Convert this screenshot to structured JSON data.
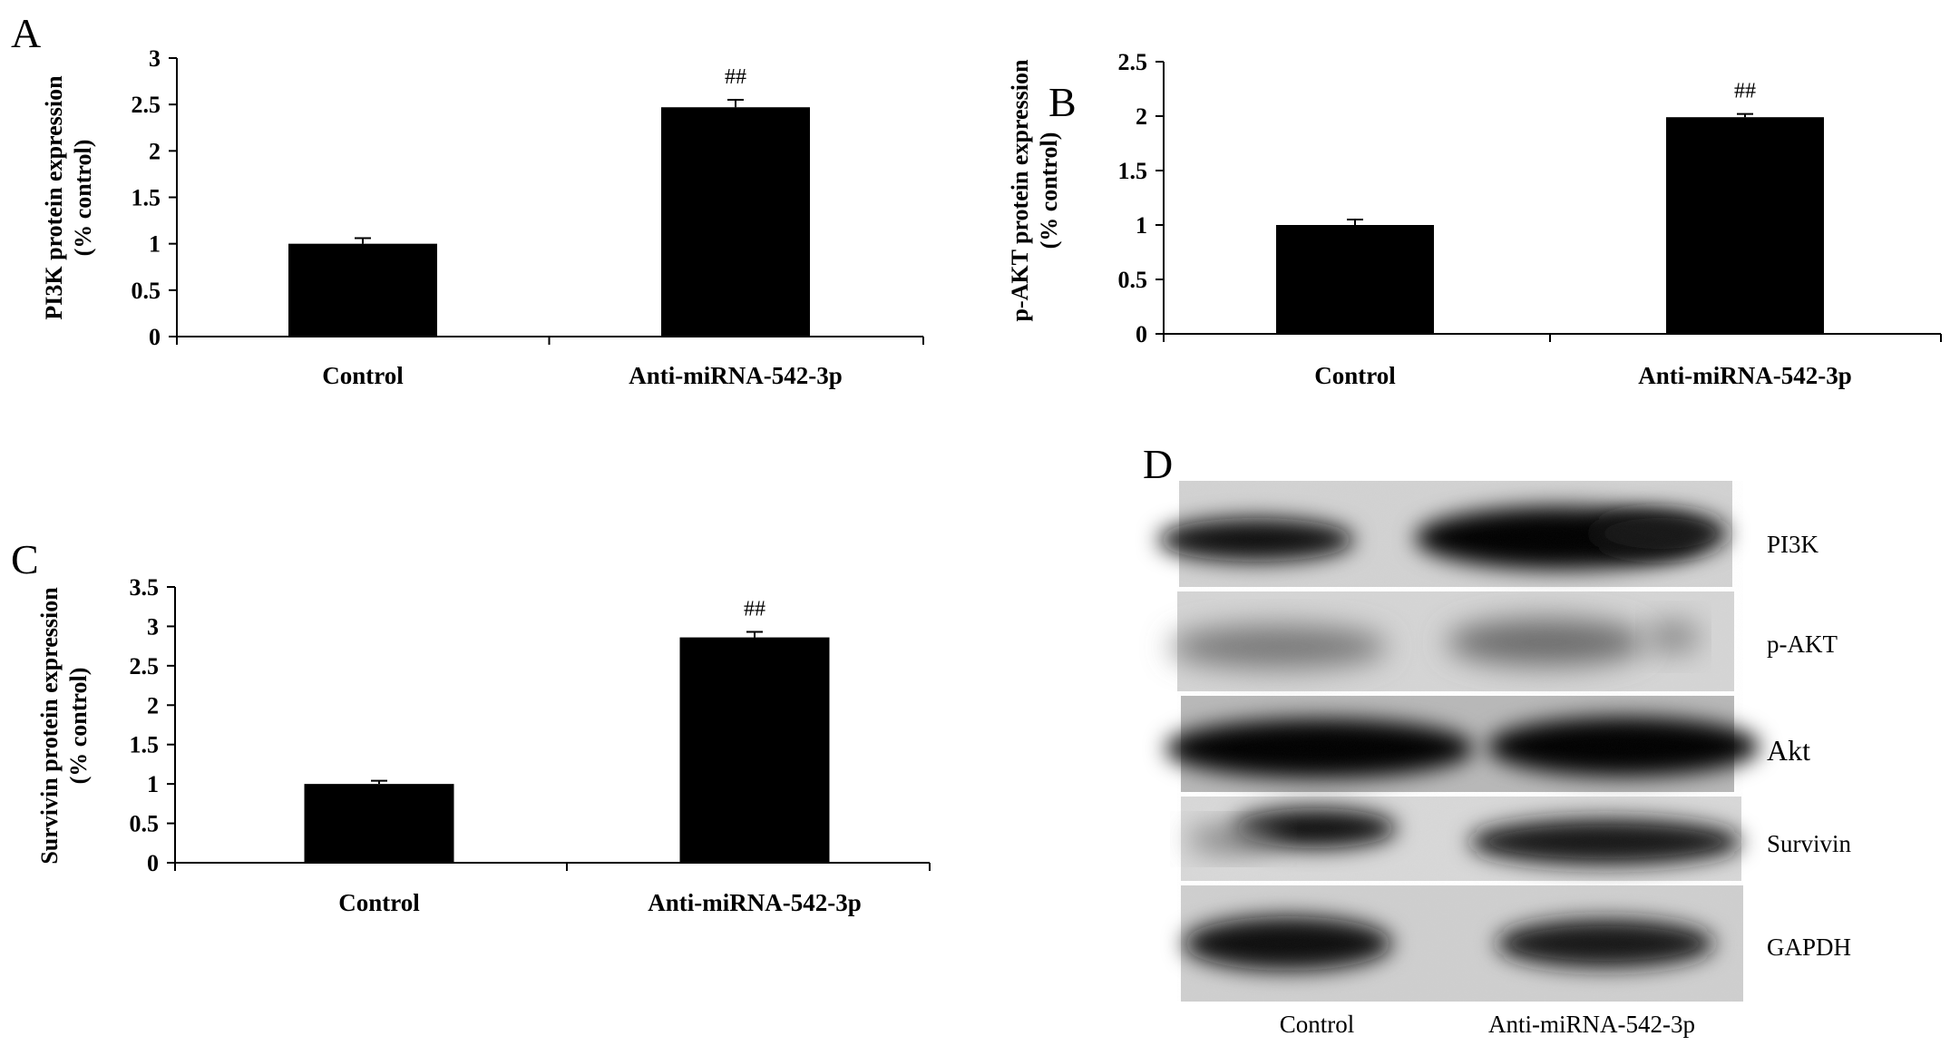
{
  "figure": {
    "panel_letters": [
      "A",
      "B",
      "C",
      "D"
    ]
  },
  "chart_data": [
    {
      "panel": "A",
      "type": "bar",
      "categories": [
        "Control",
        "Anti-miRNA-542-3p"
      ],
      "values": [
        1.0,
        2.47
      ],
      "errors": [
        0.06,
        0.08
      ],
      "annotations": [
        "",
        "##"
      ],
      "ylabel_lines": [
        "PI3K protein expression",
        "(% control)"
      ],
      "ylim": [
        0,
        3
      ],
      "yticks": [
        0,
        0.5,
        1,
        1.5,
        2,
        2.5,
        3
      ],
      "ytick_labels": [
        "0",
        "0.5",
        "1",
        "1.5",
        "2",
        "2.5",
        "3"
      ],
      "grid": false,
      "bar_color": "#000000"
    },
    {
      "panel": "B",
      "type": "bar",
      "categories": [
        "Control",
        "Anti-miRNA-542-3p"
      ],
      "values": [
        1.0,
        1.99
      ],
      "errors": [
        0.05,
        0.03
      ],
      "annotations": [
        "",
        "##"
      ],
      "ylabel_lines": [
        "p-AKT protein expression",
        "(% control)"
      ],
      "ylim": [
        0,
        2.5
      ],
      "yticks": [
        0,
        0.5,
        1,
        1.5,
        2,
        2.5
      ],
      "ytick_labels": [
        "0",
        "0.5",
        "1",
        "1.5",
        "2",
        "2.5"
      ],
      "grid": false,
      "bar_color": "#000000"
    },
    {
      "panel": "C",
      "type": "bar",
      "categories": [
        "Control",
        "Anti-miRNA-542-3p"
      ],
      "values": [
        1.0,
        2.86
      ],
      "errors": [
        0.04,
        0.07
      ],
      "annotations": [
        "",
        "##"
      ],
      "ylabel_lines": [
        "Survivin protein expression",
        "(% control)"
      ],
      "ylim": [
        0,
        3.5
      ],
      "yticks": [
        0,
        0.5,
        1,
        1.5,
        2,
        2.5,
        3,
        3.5
      ],
      "ytick_labels": [
        "0",
        "0.5",
        "1",
        "1.5",
        "2",
        "2.5",
        "3",
        "3.5"
      ],
      "grid": false,
      "bar_color": "#000000"
    }
  ],
  "western_blot": {
    "panel": "D",
    "row_labels": [
      "PI3K",
      "p-AKT",
      "Akt",
      "Survivin",
      "GAPDH"
    ],
    "column_labels": [
      "Control",
      "Anti-miRNA-542-3p"
    ]
  }
}
